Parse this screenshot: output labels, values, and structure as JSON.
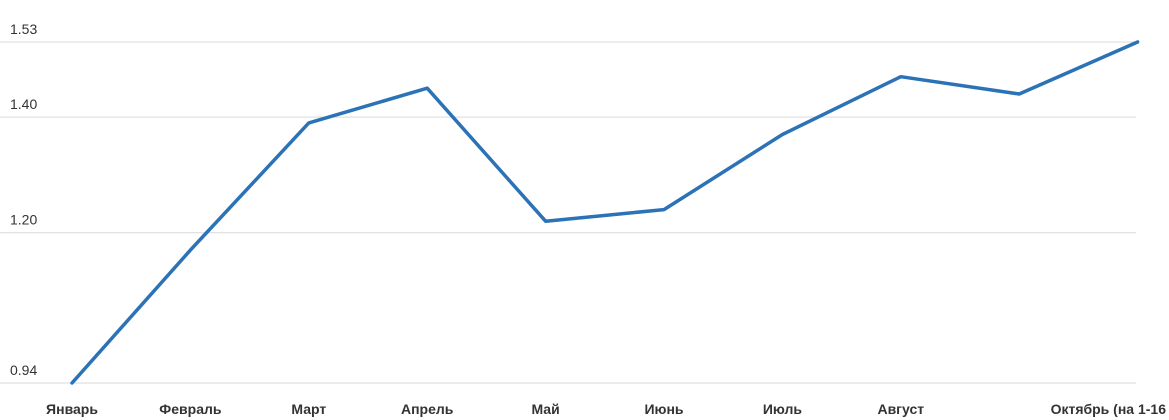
{
  "chart_data": {
    "type": "line",
    "categories": [
      "Январь",
      "Февраль",
      "Март",
      "Апрель",
      "Май",
      "Июнь",
      "Июль",
      "Август",
      "",
      "Октябрь (на 1-16"
    ],
    "series": [
      {
        "values": [
          0.94,
          1.17,
          1.39,
          1.45,
          1.22,
          1.24,
          1.37,
          1.47,
          1.44,
          1.53
        ]
      }
    ],
    "yticks": [
      0.94,
      1.2,
      1.4,
      1.53
    ],
    "ytick_labels": [
      "0.94",
      "1.20",
      "1.40",
      "1.53"
    ],
    "ylim": [
      0.94,
      1.53
    ],
    "grid": true,
    "line_color": "#2b73b6",
    "title": "",
    "xlabel": "",
    "ylabel": ""
  }
}
